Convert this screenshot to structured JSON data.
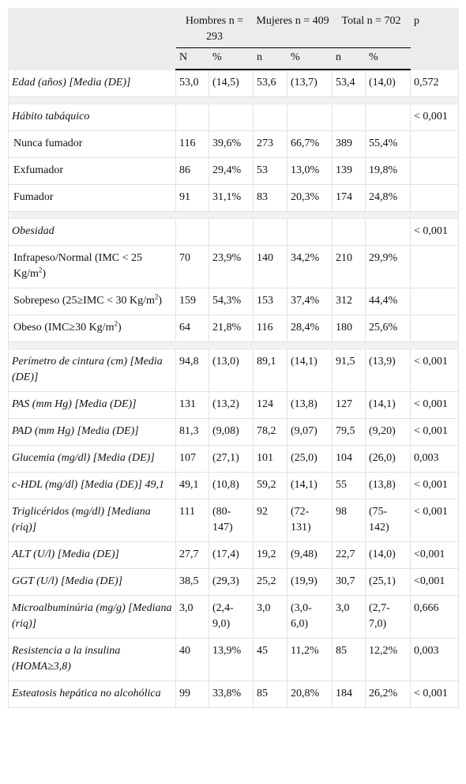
{
  "header": {
    "groups": [
      "Hombres n = 293",
      "Mujeres n = 409",
      "Total n = 702"
    ],
    "p": "p",
    "subheaders": [
      "N",
      "%",
      "n",
      "%",
      "n",
      "%"
    ]
  },
  "rows": [
    {
      "label": "Edad (años) [Media (DE)]",
      "values": [
        "53,0",
        "(14,5)",
        "53,6",
        "(13,7)",
        "53,4",
        "(14,0)"
      ],
      "p": "0,572"
    },
    {
      "label": "Hábito tabáquico",
      "p": "< 0,001",
      "items": [
        {
          "label": "Nunca fumador",
          "values": [
            "116",
            "39,6%",
            "273",
            "66,7%",
            "389",
            "55,4%"
          ]
        },
        {
          "label": "Exfumador",
          "values": [
            "86",
            "29,4%",
            "53",
            "13,0%",
            "139",
            "19,8%"
          ]
        },
        {
          "label": "Fumador",
          "values": [
            "91",
            "31,1%",
            "83",
            "20,3%",
            "174",
            "24,8%"
          ]
        }
      ]
    },
    {
      "label": "Obesidad",
      "p": "< 0,001",
      "items": [
        {
          "label": {
            "text": "Infrapeso/Normal (IMC < 25 Kg/m",
            "sup": "2",
            "after": ")"
          },
          "values": [
            "70",
            "23,9%",
            "140",
            "34,2%",
            "210",
            "29,9%"
          ]
        },
        {
          "label": {
            "text": "Sobrepeso (25≥IMC < 30 Kg/m",
            "sup": "2",
            "after": ")"
          },
          "values": [
            "159",
            "54,3%",
            "153",
            "37,4%",
            "312",
            "44,4%"
          ]
        },
        {
          "label": {
            "text": "Obeso (IMC≥30 Kg/m",
            "sup": "2",
            "after": ")"
          },
          "values": [
            "64",
            "21,8%",
            "116",
            "28,4%",
            "180",
            "25,6%"
          ]
        }
      ]
    },
    {
      "label": "Perímetro de cintura (cm) [Media (DE)]",
      "values": [
        "94,8",
        "(13,0)",
        "89,1",
        "(14,1)",
        "91,5",
        "(13,9)"
      ],
      "p": "< 0,001"
    },
    {
      "label": "PAS (mm Hg) [Media (DE)]",
      "values": [
        "131",
        "(13,2)",
        "124",
        "(13,8)",
        "127",
        "(14,1)"
      ],
      "p": "< 0,001"
    },
    {
      "label": "PAD (mm Hg) [Media (DE)]",
      "values": [
        "81,3",
        "(9,08)",
        "78,2",
        "(9,07)",
        "79,5",
        "(9,20)"
      ],
      "p": "< 0,001"
    },
    {
      "label": "Glucemia (mg/dl) [Media (DE)]",
      "values": [
        "107",
        "(27,1)",
        "101",
        "(25,0)",
        "104",
        "(26,0)"
      ],
      "p": "0,003"
    },
    {
      "label": "c-HDL (mg/dl) [Media (DE)] 49,1",
      "values": [
        "49,1",
        "(10,8)",
        "59,2",
        "(14,1)",
        "55",
        "(13,8)"
      ],
      "p": "< 0,001"
    },
    {
      "label": "Triglicéridos (mg/dl) [Mediana (riq)]",
      "values": [
        "111",
        "(80-147)",
        "92",
        "(72-131)",
        "98",
        "(75-142)"
      ],
      "p": "< 0,001"
    },
    {
      "label": "ALT (U/l) [Media (DE)]",
      "values": [
        "27,7",
        "(17,4)",
        "19,2",
        "(9,48)",
        "22,7",
        "(14,0)"
      ],
      "p": "<0,001"
    },
    {
      "label": "GGT (U/l) [Media (DE)]",
      "values": [
        "38,5",
        "(29,3)",
        "25,2",
        "(19,9)",
        "30,7",
        "(25,1)"
      ],
      "p": "<0,001"
    },
    {
      "label": "Microalbuminúria (mg/g) [Mediana (riq)]",
      "values": [
        "3,0",
        "(2,4-9,0)",
        "3,0",
        "(3,0-6,0)",
        "3,0",
        "(2,7-7,0)"
      ],
      "p": "0,666"
    },
    {
      "label": "Resistencia a la insulina (HOMA≥3,8)",
      "values": [
        "40",
        "13,9%",
        "45",
        "11,2%",
        "85",
        "12,2%"
      ],
      "p": "0,003"
    },
    {
      "label": "Esteatosis hepática no alcohólica",
      "values": [
        "99",
        "33,8%",
        "85",
        "20,8%",
        "184",
        "26,2%"
      ],
      "p": "< 0,001"
    }
  ]
}
